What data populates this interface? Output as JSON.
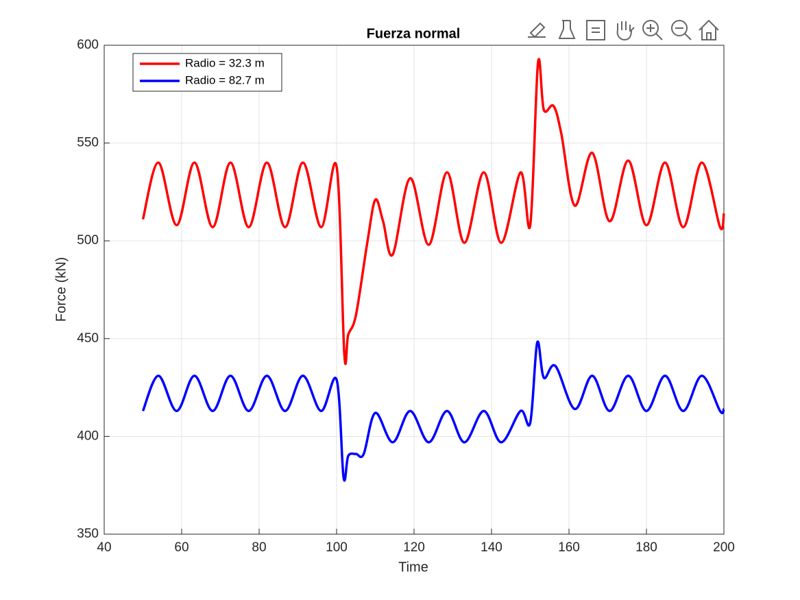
{
  "chart_data": {
    "type": "line",
    "title": "Fuerza normal",
    "x_label": "Time",
    "y_label": "Force (kN)",
    "xlim": [
      40,
      200
    ],
    "xticks": [
      40,
      60,
      80,
      100,
      120,
      140,
      160,
      180,
      200
    ],
    "ylim": [
      350,
      600
    ],
    "yticks": [
      350,
      400,
      450,
      500,
      550,
      600
    ],
    "grid": true,
    "legend": "upper left",
    "series": [
      {
        "name": "Radio = 32.3 m",
        "color": "#ff0000",
        "x": [
          50,
          54,
          58.7,
          63.3,
          68,
          72.6,
          77.3,
          82,
          86.7,
          91.3,
          96,
          100,
          102,
          103,
          105,
          108,
          110,
          112,
          114.5,
          119,
          123.8,
          128.5,
          133,
          138,
          142.5,
          147.5,
          150,
          152,
          153.5,
          156,
          158,
          161.5,
          166,
          170.5,
          175.3,
          180,
          184.8,
          189.5,
          194.3,
          199,
          200
        ],
        "values": [
          511,
          540,
          508,
          540,
          507,
          540,
          507,
          540,
          507,
          540,
          507,
          538,
          442,
          452,
          462,
          500,
          521,
          510,
          493,
          532,
          498,
          535,
          499,
          535,
          499,
          535,
          508,
          591,
          567,
          569,
          555,
          518,
          545,
          510,
          541,
          508,
          540,
          507,
          540,
          507,
          514
        ]
      },
      {
        "name": "Radio = 82.7 m",
        "color": "#0000ff",
        "x": [
          50,
          54,
          58.7,
          63.3,
          68,
          72.6,
          77.3,
          82,
          86.7,
          91.3,
          96,
          100,
          101.8,
          103,
          105,
          107,
          110,
          114.5,
          119,
          123.8,
          128.5,
          133,
          138,
          142.5,
          147.5,
          150,
          151.8,
          153.5,
          156.5,
          161.5,
          166,
          170.5,
          175.3,
          180,
          184.8,
          189.5,
          194.3,
          199,
          200
        ],
        "values": [
          413,
          431,
          413,
          431,
          413,
          431,
          413,
          431,
          413,
          431,
          413,
          429,
          379,
          390,
          391,
          391,
          412,
          397,
          413,
          397,
          413,
          397,
          413,
          397,
          413,
          407,
          448,
          430,
          436,
          414,
          431,
          413,
          431,
          413,
          431,
          413,
          431,
          413,
          414
        ]
      }
    ]
  }
}
